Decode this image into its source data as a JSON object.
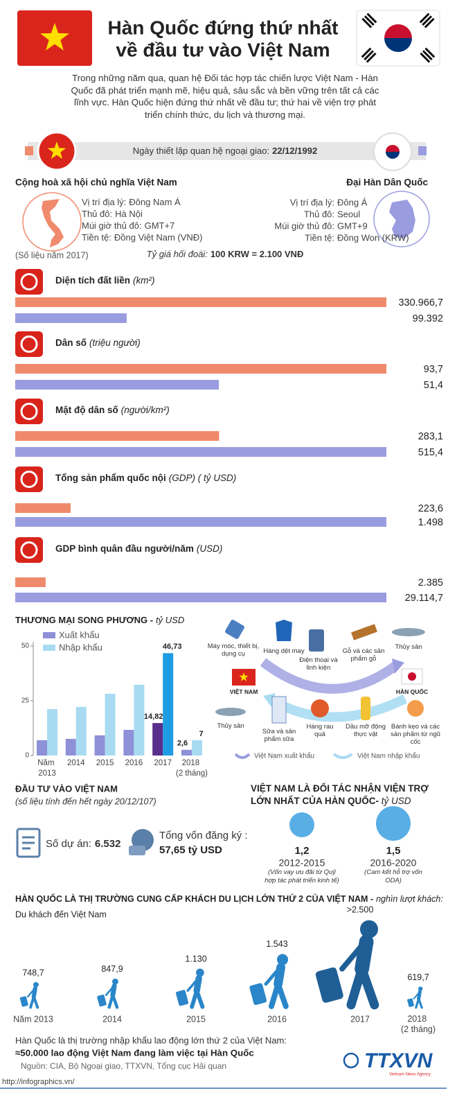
{
  "header": {
    "title": [
      "Hàn Quốc đứng thứ nhất",
      "về đầu tư vào Việt Nam"
    ]
  },
  "intro": "Trong những năm qua, quan hệ Đối tác hợp tác chiến lược Việt Nam - Hàn Quốc đã phát triển mạnh mẽ, hiệu quả, sâu sắc và bền vững trên tất cả các lĩnh vực. Hàn Quốc hiện đứng thứ nhất về đầu tư; thứ hai về viện trợ phát triển chính thức, du lịch và thương mại.",
  "diplomacy": {
    "label": "Ngày thiết lập quan hệ ngoại giao:",
    "date": "22/12/1992"
  },
  "countries": [
    {
      "name": "Cộng hoà xã hội chủ nghĩa Việt Nam",
      "facts": [
        {
          "label": "Vị trí địa lý:",
          "value": "Đông Nam Á"
        },
        {
          "label": "Thủ đô:",
          "value": "Hà Nội"
        },
        {
          "label": "Múi giờ thủ đô:",
          "value": "GMT+7"
        },
        {
          "label": "Tiền tệ:",
          "value": "Đồng Việt Nam (VNĐ)"
        }
      ]
    },
    {
      "name": "Đại Hàn Dân Quốc",
      "facts": [
        {
          "label": "Vị trí địa lý:",
          "value": "Đông Á"
        },
        {
          "label": "Thủ đô:",
          "value": "Seoul"
        },
        {
          "label": "Múi giờ thủ đô:",
          "value": "GMT+9"
        },
        {
          "label": "Tiền tệ:",
          "value": "Đồng Won (KRW)"
        }
      ]
    }
  ],
  "data_note": "(Số liệu năm 2017)",
  "exchange_rate": {
    "label": "Tỷ giá hối đoái:",
    "value": "100 KRW = 2.100 VNĐ"
  },
  "chart_data": [
    {
      "type": "hbar",
      "title": "Diện tích đất liền",
      "unit": "(km²)",
      "values": [
        330966.7,
        99392
      ],
      "value_labels": [
        "330.966,7",
        "99.392"
      ],
      "colors": [
        "#f08a6c",
        "#9a9ce0"
      ]
    },
    {
      "type": "hbar",
      "title": "Dân số",
      "unit": "(triệu người)",
      "values": [
        93.7,
        51.4
      ],
      "value_labels": [
        "93,7",
        "51,4"
      ],
      "colors": [
        "#f08a6c",
        "#9a9ce0"
      ]
    },
    {
      "type": "hbar",
      "title": "Mật độ dân số",
      "unit": "(người/km²)",
      "values": [
        283.1,
        515.4
      ],
      "value_labels": [
        "283,1",
        "515,4"
      ],
      "colors": [
        "#f08a6c",
        "#9a9ce0"
      ]
    },
    {
      "type": "hbar",
      "title": "Tổng sản phẩm quốc nội",
      "unit": "(GDP) ( tỷ USD)",
      "values": [
        223.6,
        1498
      ],
      "value_labels": [
        "223,6",
        "1.498"
      ],
      "colors": [
        "#f08a6c",
        "#9a9ce0"
      ]
    },
    {
      "type": "hbar",
      "title": "GDP bình quân đầu người/năm",
      "unit": "(USD)",
      "values": [
        2385,
        29114.7
      ],
      "value_labels": [
        "2.385",
        "29.114,7"
      ],
      "colors": [
        "#f08a6c",
        "#9a9ce0"
      ]
    },
    {
      "type": "bar",
      "title": "THƯƠNG MẠI SONG PHƯƠNG -",
      "unit": "tỷ USD",
      "categories": [
        "Năm 2013",
        "2014",
        "2015",
        "2016",
        "2017",
        "2018 (2 tháng)"
      ],
      "series": [
        {
          "name": "Xuất khẩu",
          "color": "#8e90d8",
          "colors": [
            "#8e90d8",
            "#8e90d8",
            "#8e90d8",
            "#8e90d8",
            "#5a2e8c",
            "#8e90d8"
          ],
          "values": [
            7,
            7.6,
            9.2,
            11.7,
            14.82,
            2.6
          ],
          "value_labels": [
            null,
            null,
            null,
            null,
            "14,82",
            "2,6"
          ]
        },
        {
          "name": "Nhập khẩu",
          "color": "#a8dbf2",
          "colors": [
            "#a8dbf2",
            "#a8dbf2",
            "#a8dbf2",
            "#a8dbf2",
            "#1e9de2",
            "#a8dbf2"
          ],
          "values": [
            21.2,
            22.2,
            28.2,
            32.3,
            46.73,
            7
          ],
          "value_labels": [
            null,
            null,
            null,
            null,
            "46,73",
            "7"
          ]
        }
      ],
      "ylim": [
        0,
        50
      ],
      "yticks": [
        0,
        25,
        50
      ]
    },
    {
      "type": "pictograph",
      "title": "HÀN QUỐC LÀ THỊ TRƯỜNG CUNG CẤP KHÁCH DU LỊCH LỚN THỨ 2 CỦA VIỆT NAM -",
      "unit": "nghìn lượt khách:",
      "subtitle": "Du khách đến Việt Nam",
      "categories": [
        "Năm 2013",
        "2014",
        "2015",
        "2016",
        "2017",
        "2018 (2 tháng)"
      ],
      "values": [
        748.7,
        847.9,
        1130,
        1543,
        2500,
        619.7
      ],
      "value_labels": [
        "748,7",
        "847,9",
        "1.130",
        "1.543",
        ">2.500",
        "619,7"
      ],
      "colors": [
        "#2a86c9",
        "#2a86c9",
        "#2a86c9",
        "#2a86c9",
        "#1f5f95",
        "#2a86c9"
      ]
    }
  ],
  "trade_flows": {
    "vietnam_label": "VIỆT NAM",
    "korea_label": "HÀN QUỐC",
    "exports": [
      "Máy móc, thiết bị, dụng cụ",
      "Hàng dệt may",
      "Điện thoại và linh kiện",
      "Gỗ và các sản phẩm gỗ",
      "Thủy sản"
    ],
    "imports": [
      "Thủy sản",
      "Sữa và sản phẩm sữa",
      "Hàng rau quả",
      "Dầu mỡ động thực vật",
      "Bánh kẹo và các sản phẩm từ ngũ cốc"
    ],
    "legend": {
      "exports": "Việt Nam xuất khẩu",
      "imports": "Việt Nam nhập khẩu"
    }
  },
  "investment": {
    "title": "ĐẦU TƯ VÀO VIỆT NAM",
    "subtitle": "(số liệu tính đến hết ngày 20/12/107)",
    "projects_label": "Số dự án:",
    "projects_value": "6.532",
    "capital_label": "Tổng vốn đăng ký :",
    "capital_value": "57,65 tỷ USD"
  },
  "aid": {
    "title": "VIỆT NAM LÀ ĐỐI TÁC NHẬN VIỆN TRỢ LỚN NHẤT CỦA HÀN QUỐC-",
    "unit": "tỷ USD",
    "items": [
      {
        "value": "1,2",
        "period": "2012-2015",
        "note": "(Vốn vay ưu đãi từ Quỹ hợp tác phát triển kinh tế)"
      },
      {
        "value": "1,5",
        "period": "2016-2020",
        "note": "(Cam kết hỗ trợ vốn ODA)"
      }
    ]
  },
  "footer": {
    "labor": "Hàn Quốc là thị trường nhập khẩu lao động lớn thứ 2 của Việt Nam:",
    "labor_count": "≈50.000 lao động Việt Nam đang làm việc tại Hàn Quốc",
    "source": "Nguồn: CIA, Bộ Ngoại giao, TTXVN, Tổng cục Hải quan",
    "url": "http://infographics.vn/",
    "logo": "TTXVN",
    "logo_sub": "Vietnam News Agency"
  }
}
